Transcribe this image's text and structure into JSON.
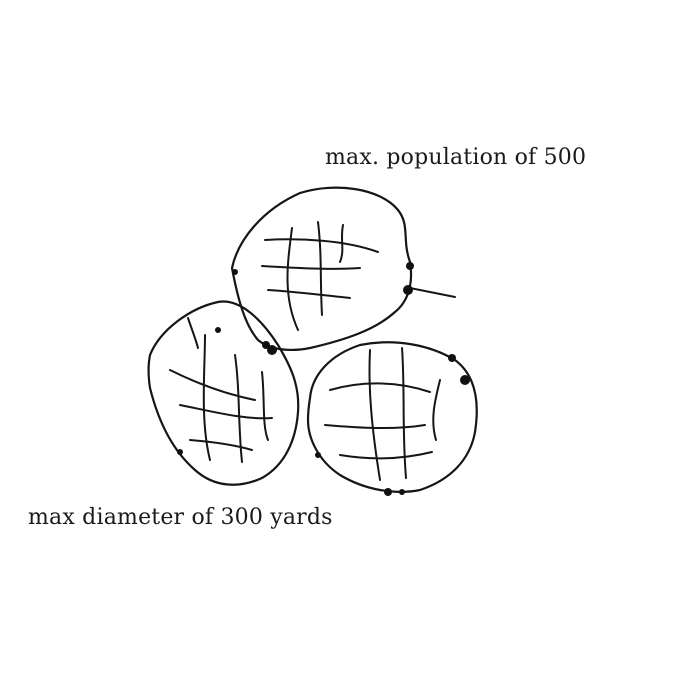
{
  "labels": {
    "population": "max. population of 500",
    "diameter": "max diameter of 300 yards"
  },
  "colors": {
    "ink": "#161616",
    "background": "#ffffff"
  }
}
